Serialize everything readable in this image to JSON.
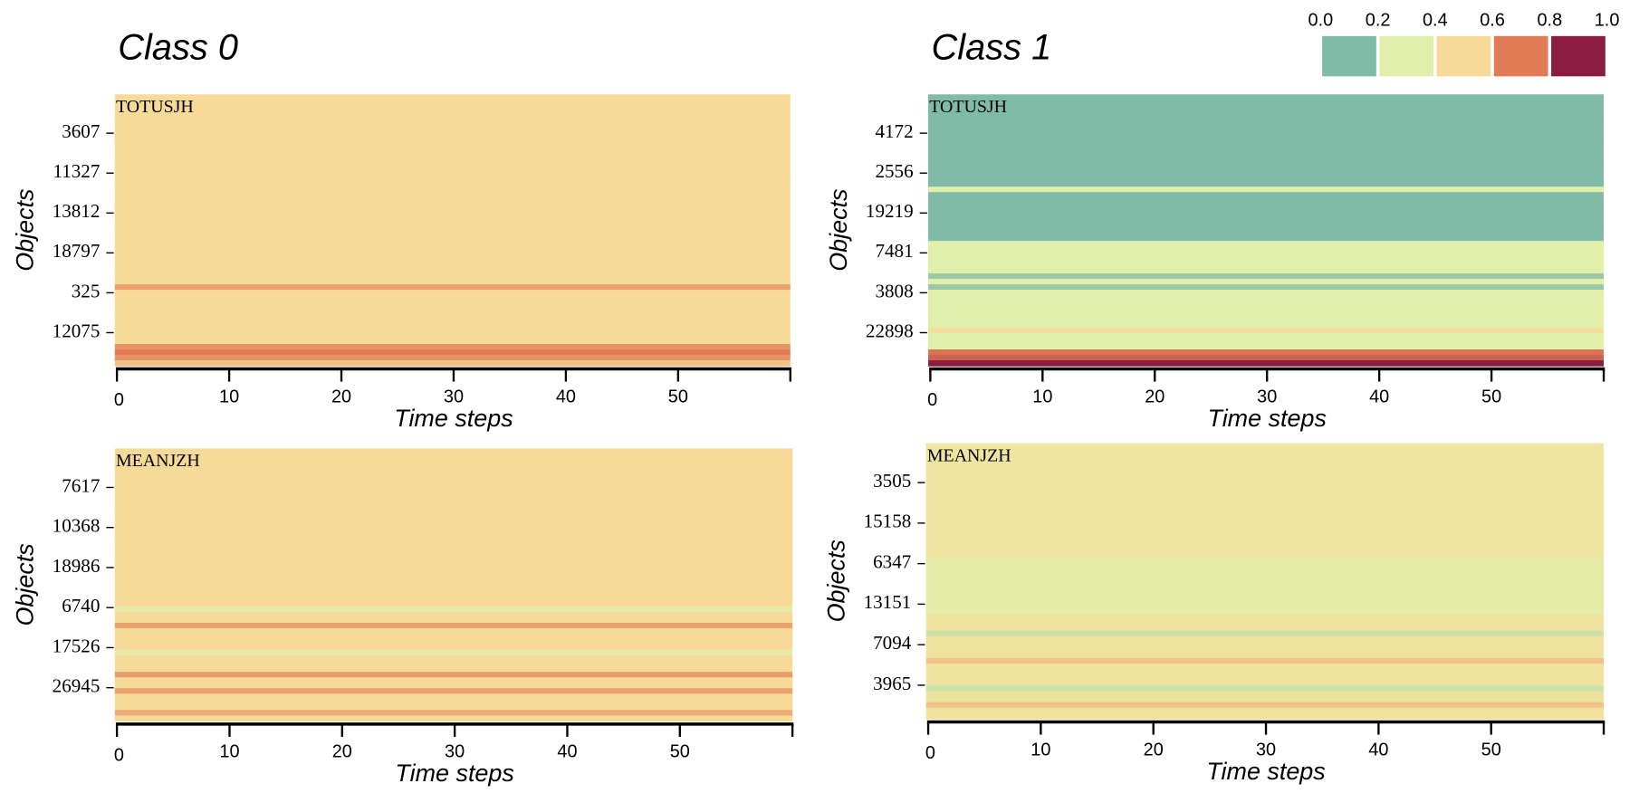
{
  "colorscale": {
    "ticks": [
      {
        "value": 0,
        "label": "0.0"
      },
      0.2,
      0.4,
      0.6,
      0.8,
      {
        "value": 1,
        "label": "1.0"
      }
    ],
    "colors": [
      "#80bba8",
      "#e2efaa",
      "#f7da98",
      "#e07b55",
      "#8c1c42"
    ]
  },
  "chart_data": [
    {
      "type": "heatmap",
      "title": "Class 0",
      "label": "TOTUSJH",
      "xlabel": "Time steps",
      "ylabel": "Objects",
      "xlim": [
        0,
        60
      ],
      "xticks": [
        0,
        10,
        20,
        30,
        40,
        50
      ],
      "categories": [
        "3607",
        "11327",
        "13812",
        "18797",
        "325",
        "12075"
      ],
      "rows": [
        0.5,
        0.5,
        0.5,
        0.5,
        0.5,
        0.5,
        0.5,
        0.5,
        0.5,
        0.5,
        0.5,
        0.5,
        0.5,
        0.5,
        0.5,
        0.5,
        0.5,
        0.5,
        0.5,
        0.5,
        0.5,
        0.5,
        0.5,
        0.5,
        0.5,
        0.5,
        0.5,
        0.5,
        0.5,
        0.5,
        0.5,
        0.5,
        0.5,
        0.5,
        0.5,
        0.62,
        0.5,
        0.5,
        0.5,
        0.5,
        0.5,
        0.5,
        0.5,
        0.5,
        0.5,
        0.5,
        0.65,
        0.7,
        0.65,
        0.55
      ]
    },
    {
      "type": "heatmap",
      "title": "Class 1",
      "label": "TOTUSJH",
      "xlabel": "Time steps",
      "ylabel": "Objects",
      "xlim": [
        0,
        60
      ],
      "xticks": [
        0,
        10,
        20,
        30,
        40,
        50
      ],
      "categories": [
        "4172",
        "2556",
        "19219",
        "7481",
        "3808",
        "22898"
      ],
      "rows": [
        0.1,
        0.1,
        0.1,
        0.1,
        0.1,
        0.1,
        0.1,
        0.1,
        0.1,
        0.1,
        0.1,
        0.1,
        0.1,
        0.1,
        0.1,
        0.1,
        0.1,
        0.3,
        0.1,
        0.1,
        0.1,
        0.1,
        0.1,
        0.1,
        0.1,
        0.1,
        0.1,
        0.3,
        0.3,
        0.3,
        0.3,
        0.3,
        0.3,
        0.15,
        0.3,
        0.15,
        0.3,
        0.3,
        0.3,
        0.3,
        0.3,
        0.3,
        0.3,
        0.45,
        0.3,
        0.3,
        0.3,
        0.72,
        0.75,
        0.92
      ]
    },
    {
      "type": "heatmap",
      "label": "MEANJZH",
      "xlabel": "Time steps",
      "ylabel": "Objects",
      "xlim": [
        0,
        60
      ],
      "xticks": [
        0,
        10,
        20,
        30,
        40,
        50
      ],
      "categories": [
        "7617",
        "10368",
        "18986",
        "6740",
        "17526",
        "26945"
      ],
      "rows": [
        0.5,
        0.5,
        0.5,
        0.5,
        0.5,
        0.5,
        0.5,
        0.5,
        0.5,
        0.5,
        0.5,
        0.5,
        0.5,
        0.5,
        0.5,
        0.5,
        0.5,
        0.5,
        0.5,
        0.5,
        0.5,
        0.5,
        0.5,
        0.5,
        0.5,
        0.5,
        0.5,
        0.5,
        0.5,
        0.35,
        0.5,
        0.5,
        0.62,
        0.5,
        0.5,
        0.5,
        0.5,
        0.35,
        0.5,
        0.5,
        0.5,
        0.63,
        0.5,
        0.5,
        0.62,
        0.5,
        0.5,
        0.5,
        0.6,
        0.5
      ]
    },
    {
      "type": "heatmap",
      "label": "MEANJZH",
      "xlabel": "Time steps",
      "ylabel": "Objects",
      "xlim": [
        0,
        60
      ],
      "xticks": [
        0,
        10,
        20,
        30,
        40,
        50
      ],
      "categories": [
        "3505",
        "15158",
        "6347",
        "13151",
        "7094",
        "3965"
      ],
      "rows": [
        0.4,
        0.4,
        0.4,
        0.4,
        0.4,
        0.4,
        0.4,
        0.4,
        0.4,
        0.4,
        0.4,
        0.4,
        0.4,
        0.4,
        0.4,
        0.4,
        0.4,
        0.4,
        0.4,
        0.4,
        0.4,
        0.33,
        0.33,
        0.33,
        0.33,
        0.33,
        0.33,
        0.33,
        0.33,
        0.33,
        0.33,
        0.42,
        0.42,
        0.42,
        0.25,
        0.42,
        0.42,
        0.42,
        0.42,
        0.55,
        0.42,
        0.42,
        0.42,
        0.42,
        0.25,
        0.42,
        0.42,
        0.55,
        0.42,
        0.42
      ]
    }
  ]
}
